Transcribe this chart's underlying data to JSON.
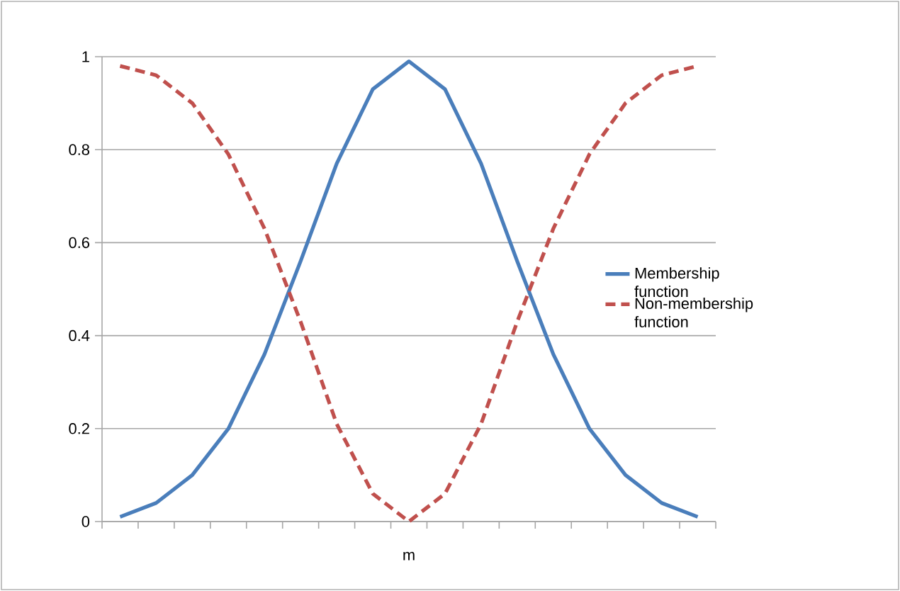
{
  "chart_data": {
    "type": "line",
    "xlabel": "m",
    "categories": [
      null,
      null,
      null,
      null,
      null,
      null,
      null,
      null,
      null,
      null,
      null,
      null,
      null,
      null,
      null,
      null,
      null
    ],
    "series": [
      {
        "name": "Membership function",
        "color": "#4a7ebb",
        "line_style": "solid",
        "values": [
          0.01,
          0.04,
          0.1,
          0.2,
          0.36,
          0.56,
          0.77,
          0.93,
          0.99,
          0.93,
          0.77,
          0.56,
          0.36,
          0.2,
          0.1,
          0.04,
          0.01
        ]
      },
      {
        "name": "Non-membership function",
        "color": "#c0504d",
        "line_style": "dashed",
        "values": [
          0.98,
          0.96,
          0.9,
          0.79,
          0.63,
          0.43,
          0.21,
          0.06,
          0.0,
          0.06,
          0.21,
          0.43,
          0.63,
          0.79,
          0.9,
          0.96,
          0.98
        ]
      }
    ],
    "ylim": [
      0,
      1
    ],
    "yticks": [
      0,
      0.2,
      0.4,
      0.6,
      0.8,
      1
    ],
    "grid": "y",
    "legend": "right",
    "marker": "none"
  }
}
